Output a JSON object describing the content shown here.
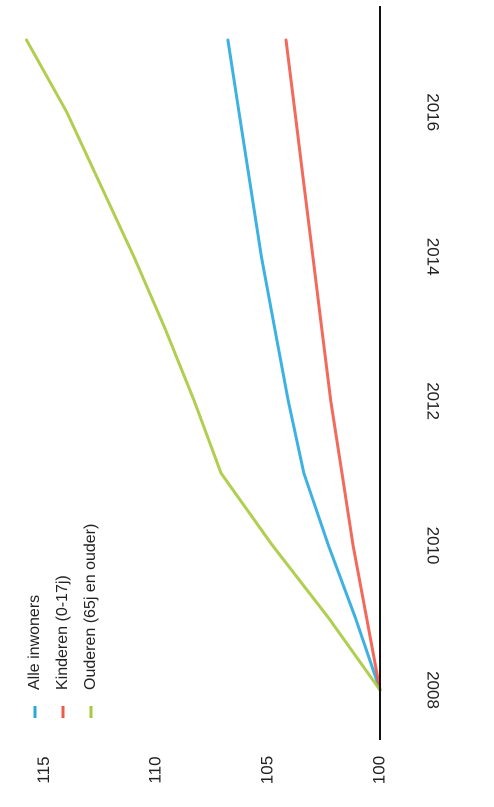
{
  "chart_data": {
    "type": "line",
    "orientation": "rotated-90-clockwise",
    "x": [
      2008,
      2009,
      2010,
      2011,
      2012,
      2013,
      2014,
      2015,
      2016,
      2017
    ],
    "xticks": [
      2008,
      2010,
      2012,
      2014,
      2016
    ],
    "xlim": [
      2008,
      2017
    ],
    "ylim": [
      100,
      116
    ],
    "yticks": [
      100,
      105,
      110,
      115
    ],
    "grid": false,
    "legend_position": "left",
    "series": [
      {
        "name": "Alle inwoners",
        "color": "#29a8e0",
        "values": [
          100.0,
          101.1,
          102.3,
          103.4,
          104.1,
          104.7,
          105.3,
          105.8,
          106.3,
          106.8
        ]
      },
      {
        "name": "Kinderen (0-17j)",
        "color": "#ef5a4a",
        "values": [
          100.0,
          100.6,
          101.2,
          101.7,
          102.2,
          102.6,
          103.0,
          103.4,
          103.8,
          104.2
        ]
      },
      {
        "name": "Ouderen (65j en ouder)",
        "color": "#a7c93d",
        "values": [
          100.0,
          102.3,
          104.8,
          107.1,
          108.3,
          109.6,
          111.0,
          112.5,
          114.0,
          115.8
        ]
      }
    ]
  }
}
